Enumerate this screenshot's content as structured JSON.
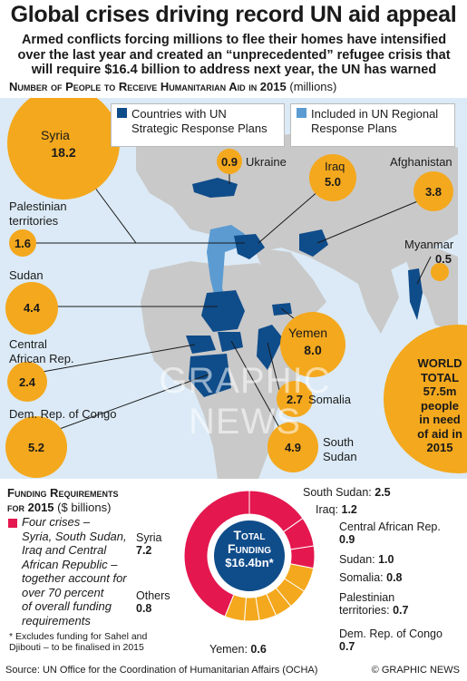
{
  "title": "Global crises driving record UN aid appeal",
  "subtitle": "Armed conflicts forcing millions to flee their homes have intensified over the last year and created an “unprecedented” refugee crisis that will require $16.4 billion to address next year, the UN has warned",
  "map_section": {
    "heading": "Number of People to Receive Humanitarian Aid in 2015",
    "unit": "(millions)",
    "legend": [
      {
        "label": "Countries with UN Strategic Response Plans",
        "line1": "Countries with UN",
        "line2": "Strategic Response Plans",
        "color": "#0f4c8a"
      },
      {
        "label": "Included in UN Regional Response Plans",
        "line1": "Included in UN Regional",
        "line2": "Response Plans",
        "color": "#5b9bd1"
      }
    ],
    "world_total": {
      "line1": "WORLD",
      "line2": "TOTAL",
      "line3": "57.5m",
      "line4": "people",
      "line5": "in need",
      "line6": "of aid in",
      "line7": "2015"
    },
    "watermark": "GRAPHIC NEWS"
  },
  "chart_data": [
    {
      "type": "bubble",
      "title": "Number of People to Receive Humanitarian Aid in 2015",
      "unit": "millions",
      "categories": [
        "Syria",
        "Ukraine",
        "Iraq",
        "Afghanistan",
        "Palestinian territories",
        "Myanmar",
        "Sudan",
        "Yemen",
        "Central African Rep.",
        "Somalia",
        "Dem. Rep. of Congo",
        "South Sudan"
      ],
      "values": [
        18.2,
        0.9,
        5.0,
        3.8,
        1.6,
        0.5,
        4.4,
        8.0,
        2.4,
        2.7,
        5.2,
        4.9
      ],
      "labels": {
        "syria": "Syria",
        "ukraine": "Ukraine",
        "iraq": "Iraq",
        "afghanistan": "Afghanistan",
        "palestinian1": "Palestinian",
        "palestinian2": "territories",
        "myanmar": "Myanmar",
        "sudan": "Sudan",
        "yemen": "Yemen",
        "car1": "Central",
        "car2": "African Rep.",
        "somalia": "Somalia",
        "drc": "Dem. Rep. of Congo",
        "ssudan1": "South",
        "ssudan2": "Sudan"
      },
      "value_labels": {
        "syria": "18.2",
        "ukraine": "0.9",
        "iraq": "5.0",
        "afghanistan": "3.8",
        "palestinian": "1.6",
        "myanmar": "0.5",
        "sudan": "4.4",
        "yemen": "8.0",
        "car": "2.4",
        "somalia": "2.7",
        "drc": "5.2",
        "ssudan": "4.9"
      },
      "bubble_color": "#f4a81d"
    },
    {
      "type": "pie",
      "title": "Funding Requirements for 2015",
      "unit": "$ billions",
      "categories": [
        "South Sudan",
        "Iraq",
        "Central African Rep.",
        "Sudan",
        "Somalia",
        "Palestinian territories",
        "Dem. Rep. of Congo",
        "Yemen",
        "Others",
        "Syria"
      ],
      "values": [
        2.5,
        1.2,
        0.9,
        1.0,
        0.8,
        0.7,
        0.7,
        0.6,
        0.8,
        7.2
      ],
      "highlight": [
        "South Sudan",
        "Iraq",
        "Central African Rep.",
        "Syria"
      ],
      "colors": {
        "highlight": "#e4174f",
        "other": "#f4a81d"
      },
      "center": {
        "line1": "Total",
        "line2": "Funding",
        "line3": "$16.4bn*"
      }
    }
  ],
  "funding_section": {
    "heading1": "Funding Requirements",
    "heading2": "for 2015",
    "unit": "($ billions)",
    "key_text": [
      "Four crises –",
      "Syria, South Sudan,",
      "Iraq and Central",
      "African Republic –",
      "together account for",
      "over 70 percent",
      "of overall funding",
      "requirements"
    ],
    "footnote": [
      "* Excludes funding for Sahel and",
      "Djibouti – to be finalised in 2015"
    ],
    "labels": {
      "ssudan": "South Sudan:",
      "ssudan_v": "2.5",
      "iraq": "Iraq:",
      "iraq_v": "1.2",
      "car": "Central African Rep.",
      "car_v": "0.9",
      "sudan": "Sudan:",
      "sudan_v": "1.0",
      "somalia": "Somalia:",
      "somalia_v": "0.8",
      "pal1": "Palestinian",
      "pal2": "territories:",
      "pal_v": "0.7",
      "drc": "Dem. Rep. of Congo",
      "drc_v": "0.7",
      "yemen": "Yemen:",
      "yemen_v": "0.6",
      "others": "Others",
      "others_v": "0.8",
      "syria": "Syria",
      "syria_v": "7.2"
    }
  },
  "footer": {
    "source": "Source: UN Office for the Coordination of Humanitarian Affairs (OCHA)",
    "credit": "© GRAPHIC NEWS"
  }
}
